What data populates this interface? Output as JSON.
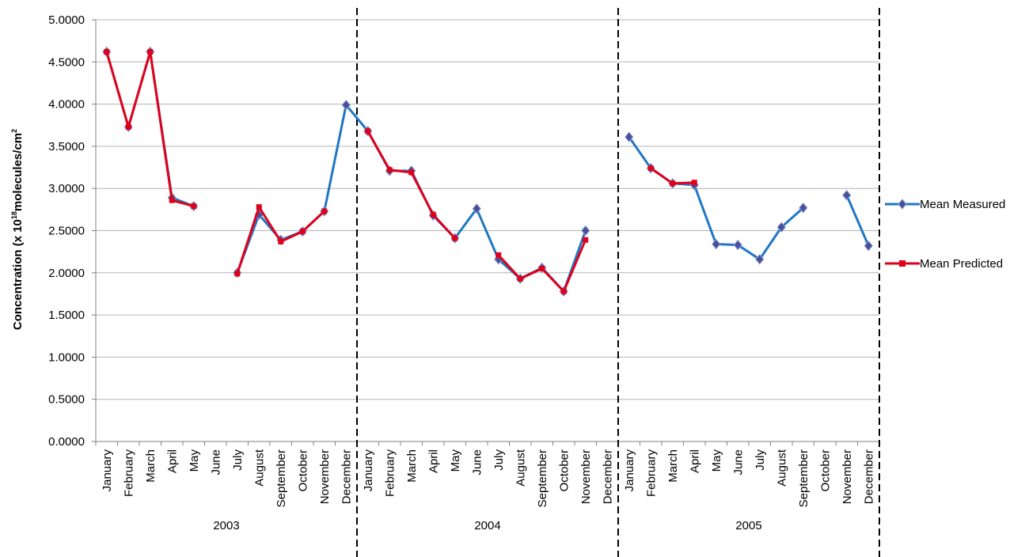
{
  "chart_data": {
    "type": "line",
    "ylabel_prefix": "Concentration (x 10",
    "ylabel_sup1": "18",
    "ylabel_mid": "molecules/cm",
    "ylabel_sup2": "2",
    "ylim": [
      0,
      5
    ],
    "yticks": [
      "0.0000",
      "0.5000",
      "1.0000",
      "1.5000",
      "2.0000",
      "2.5000",
      "3.0000",
      "3.5000",
      "4.0000",
      "4.5000",
      "5.0000"
    ],
    "grid": true,
    "legend_position": "right",
    "years": [
      "2003",
      "2004",
      "2005"
    ],
    "months": [
      "January",
      "February",
      "March",
      "April",
      "May",
      "June",
      "July",
      "August",
      "September",
      "October",
      "November",
      "December"
    ],
    "series": [
      {
        "name": "Mean Measured",
        "color": "#1f77c4",
        "marker_color": "#4a4f9a",
        "values": [
          4.62,
          3.73,
          4.62,
          2.89,
          2.79,
          null,
          2.0,
          2.69,
          2.39,
          2.49,
          2.73,
          3.99,
          3.68,
          3.21,
          3.21,
          2.68,
          2.41,
          2.76,
          2.16,
          1.93,
          2.06,
          1.78,
          2.5,
          null,
          3.61,
          3.24,
          3.06,
          3.04,
          2.34,
          2.33,
          2.16,
          2.54,
          2.77,
          null,
          2.92,
          2.32
        ]
      },
      {
        "name": "Mean Predicted",
        "color": "#e0001a",
        "marker_color": "#e0001a",
        "values": [
          4.62,
          3.73,
          4.62,
          2.86,
          2.79,
          null,
          1.99,
          2.78,
          2.37,
          2.49,
          2.73,
          null,
          3.68,
          3.22,
          3.19,
          2.69,
          2.41,
          null,
          2.21,
          1.93,
          2.05,
          1.78,
          2.39,
          null,
          null,
          3.24,
          3.06,
          3.07,
          null,
          null,
          null,
          null,
          null,
          null,
          null,
          null
        ]
      }
    ]
  }
}
